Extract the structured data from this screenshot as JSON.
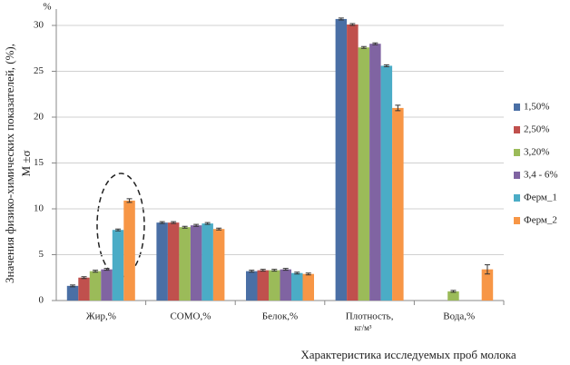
{
  "chart_data": {
    "type": "bar",
    "y_unit": "%",
    "y_label": "Значения физико-химических показателей, (%),",
    "y_label_2": "M ±σ",
    "x_label": "Характеристика исследуемых проб молока",
    "categories": [
      "Жир,%",
      "СОМО,%",
      "Белок,%",
      "Плотность,",
      "Вода,%"
    ],
    "category_note": "кг/м³",
    "series": [
      {
        "name": "1,50%",
        "color": "#4a6fa5",
        "values": [
          1.6,
          8.5,
          3.2,
          30.7,
          0
        ],
        "errors": [
          0.1,
          0.1,
          0.1,
          0.1,
          0
        ]
      },
      {
        "name": "2,50%",
        "color": "#c0504d",
        "values": [
          2.5,
          8.5,
          3.3,
          30.1,
          0
        ],
        "errors": [
          0.1,
          0.1,
          0.1,
          0.1,
          0
        ]
      },
      {
        "name": "3,20%",
        "color": "#9bbb59",
        "values": [
          3.2,
          8.0,
          3.3,
          27.6,
          1.0
        ],
        "errors": [
          0.1,
          0.1,
          0.1,
          0.1,
          0.1
        ]
      },
      {
        "name": "3,4 - 6%",
        "color": "#8064a2",
        "values": [
          3.4,
          8.2,
          3.4,
          28.0,
          0
        ],
        "errors": [
          0.1,
          0.1,
          0.1,
          0.1,
          0
        ]
      },
      {
        "name": "Ферм_1",
        "color": "#4bacc6",
        "values": [
          7.7,
          8.4,
          3.0,
          25.6,
          0
        ],
        "errors": [
          0.1,
          0.1,
          0.1,
          0.1,
          0
        ]
      },
      {
        "name": "Ферм_2",
        "color": "#f79646",
        "values": [
          10.9,
          7.8,
          2.9,
          21.0,
          3.4
        ],
        "errors": [
          0.2,
          0.1,
          0.1,
          0.3,
          0.5
        ]
      }
    ],
    "ylim": [
      0,
      30
    ],
    "yticks": [
      0,
      5,
      10,
      15,
      20,
      25,
      30
    ],
    "grid": true,
    "legend": "right"
  }
}
